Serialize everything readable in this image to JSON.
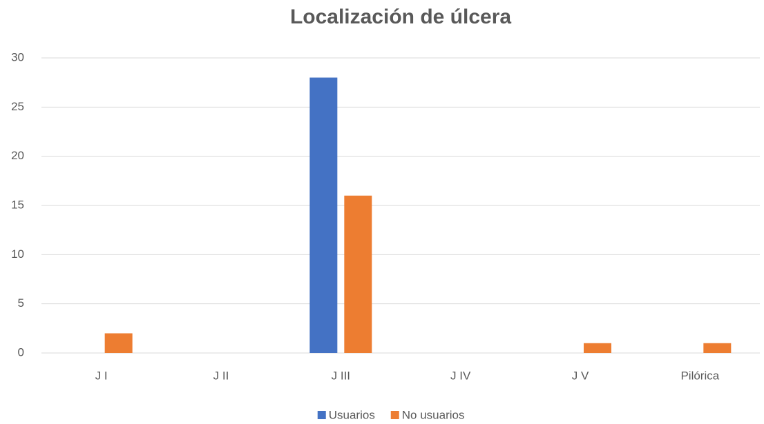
{
  "chart_data": {
    "type": "bar",
    "title": "Localización de úlcera",
    "categories": [
      "J I",
      "J II",
      "J III",
      "J IV",
      "J V",
      "Pilórica"
    ],
    "series": [
      {
        "name": "Usuarios",
        "color": "#4472c4",
        "values": [
          0,
          0,
          28,
          0,
          0,
          0
        ]
      },
      {
        "name": "No usuarios",
        "color": "#ed7d31",
        "values": [
          2,
          0,
          16,
          0,
          1,
          1
        ]
      }
    ],
    "ylim": [
      0,
      30
    ],
    "yticks": [
      0,
      5,
      10,
      15,
      20,
      25,
      30
    ],
    "grid": true,
    "legend": "bottom"
  }
}
